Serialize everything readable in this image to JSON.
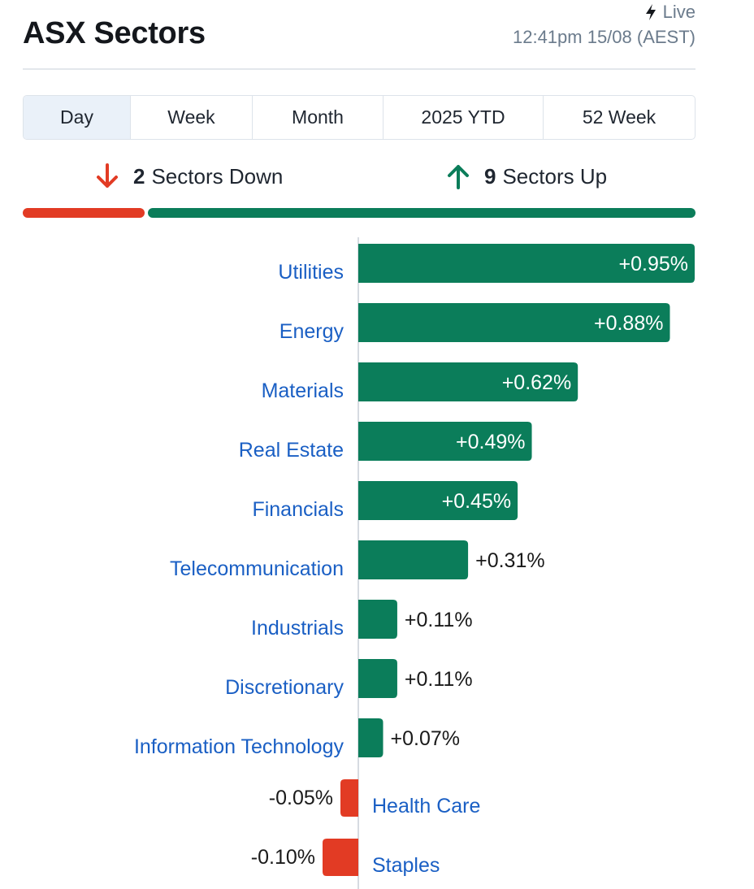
{
  "header": {
    "title": "ASX Sectors",
    "live_label": "Live",
    "timestamp": "12:41pm 15/08 (AEST)"
  },
  "tabs": [
    {
      "label": "Day",
      "active": true
    },
    {
      "label": "Week",
      "active": false
    },
    {
      "label": "Month",
      "active": false
    },
    {
      "label": "2025 YTD",
      "active": false
    },
    {
      "label": "52 Week",
      "active": false
    }
  ],
  "summary": {
    "down_count": "2",
    "down_label": "Sectors Down",
    "up_count": "9",
    "up_label": "Sectors Up"
  },
  "colors": {
    "positive": "#0b7d5a",
    "negative": "#e23b24",
    "link": "#1a5fc4",
    "axis": "#d6dbe1"
  },
  "chart_data": {
    "type": "bar",
    "orientation": "horizontal",
    "categories": [
      "Utilities",
      "Energy",
      "Materials",
      "Real Estate",
      "Financials",
      "Telecommunication",
      "Industrials",
      "Discretionary",
      "Information Technology",
      "Health Care",
      "Staples"
    ],
    "values": [
      0.95,
      0.88,
      0.62,
      0.49,
      0.45,
      0.31,
      0.11,
      0.11,
      0.07,
      -0.05,
      -0.1
    ],
    "value_labels": [
      "+0.95%",
      "+0.88%",
      "+0.62%",
      "+0.49%",
      "+0.45%",
      "+0.31%",
      "+0.11%",
      "+0.11%",
      "+0.07%",
      "-0.05%",
      "-0.10%"
    ],
    "unit": "%",
    "xlim": [
      -0.1,
      0.95
    ],
    "grid": false,
    "legend": "none"
  }
}
